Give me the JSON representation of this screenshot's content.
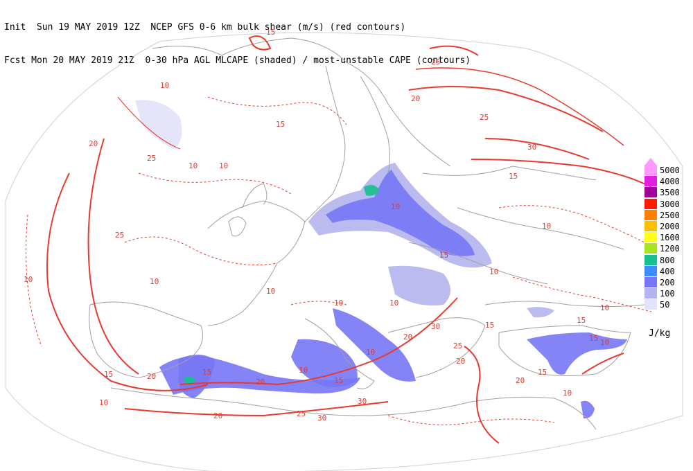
{
  "header": {
    "line1": "Init  Sun 19 MAY 2019 12Z  NCEP GFS 0-6 km bulk shear (m/s) (red contours)",
    "line2": "Fcst Mon 20 MAY 2019 21Z  0-30 hPa AGL MLCAPE (shaded) / most-unstable CAPE (contours)"
  },
  "legend": {
    "units": "J/kg",
    "items": [
      {
        "label": "5000",
        "color": "#ff99ff"
      },
      {
        "label": "4000",
        "color": "#e11ee1"
      },
      {
        "label": "3500",
        "color": "#a0009a"
      },
      {
        "label": "3000",
        "color": "#ff1a00"
      },
      {
        "label": "2500",
        "color": "#ff7f00"
      },
      {
        "label": "2000",
        "color": "#ffbe00"
      },
      {
        "label": "1600",
        "color": "#ffff1a"
      },
      {
        "label": "1200",
        "color": "#a6e61e"
      },
      {
        "label": "800",
        "color": "#17c08e"
      },
      {
        "label": "400",
        "color": "#3f8cff"
      },
      {
        "label": "200",
        "color": "#7777f5"
      },
      {
        "label": "100",
        "color": "#b4b4ee"
      },
      {
        "label": "50",
        "color": "#e2e2fa"
      }
    ]
  },
  "contour_labels": [
    "15",
    "25",
    "20",
    "10",
    "30"
  ],
  "colors": {
    "shear_contour": "#e8392d",
    "border": "#a0a0a0",
    "cape_contour": "#8080b0"
  }
}
